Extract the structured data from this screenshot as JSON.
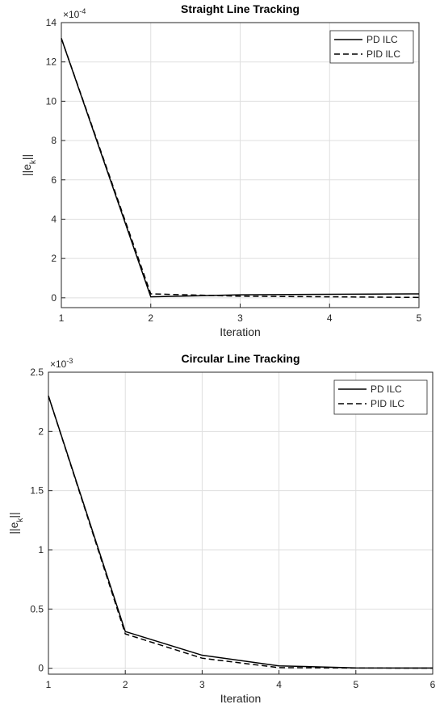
{
  "chart_data": [
    {
      "type": "line",
      "title": "Straight Line Tracking",
      "xlabel": "Iteration",
      "ylabel": [
        "||e",
        "k",
        "||"
      ],
      "y_multiplier": "×10",
      "y_exponent": "-4",
      "x": [
        1,
        2,
        3,
        4,
        5
      ],
      "xlim": [
        1,
        5
      ],
      "xticks": [
        1,
        2,
        3,
        4,
        5
      ],
      "ylim": [
        -0.5,
        14
      ],
      "yticks": [
        0,
        2,
        4,
        6,
        8,
        10,
        12,
        14
      ],
      "grid": true,
      "legend": "upper right",
      "series": [
        {
          "name": "PD ILC",
          "color": "#000000",
          "dash": "solid",
          "values": [
            13.2,
            0.05,
            0.15,
            0.18,
            0.2
          ]
        },
        {
          "name": "PID ILC",
          "color": "#000000",
          "dash": "dashed",
          "values": [
            13.2,
            0.2,
            0.08,
            0.05,
            0.02
          ]
        }
      ]
    },
    {
      "type": "line",
      "title": "Circular Line Tracking",
      "xlabel": "Iteration",
      "ylabel": [
        "||e",
        "k",
        "||"
      ],
      "y_multiplier": "×10",
      "y_exponent": "-3",
      "x": [
        1,
        2,
        3,
        4,
        5,
        6
      ],
      "xlim": [
        1,
        6
      ],
      "xticks": [
        1,
        2,
        3,
        4,
        5,
        6
      ],
      "ylim": [
        -0.05,
        2.5
      ],
      "yticks": [
        0,
        0.5,
        1,
        1.5,
        2,
        2.5
      ],
      "grid": true,
      "legend": "upper right",
      "series": [
        {
          "name": "PD ILC",
          "color": "#000000",
          "dash": "solid",
          "values": [
            2.3,
            0.31,
            0.11,
            0.02,
            0.003,
            0.002
          ]
        },
        {
          "name": "PID ILC",
          "color": "#000000",
          "dash": "dashed",
          "values": [
            2.3,
            0.29,
            0.085,
            0.005,
            0.002,
            0.001
          ]
        }
      ]
    }
  ]
}
